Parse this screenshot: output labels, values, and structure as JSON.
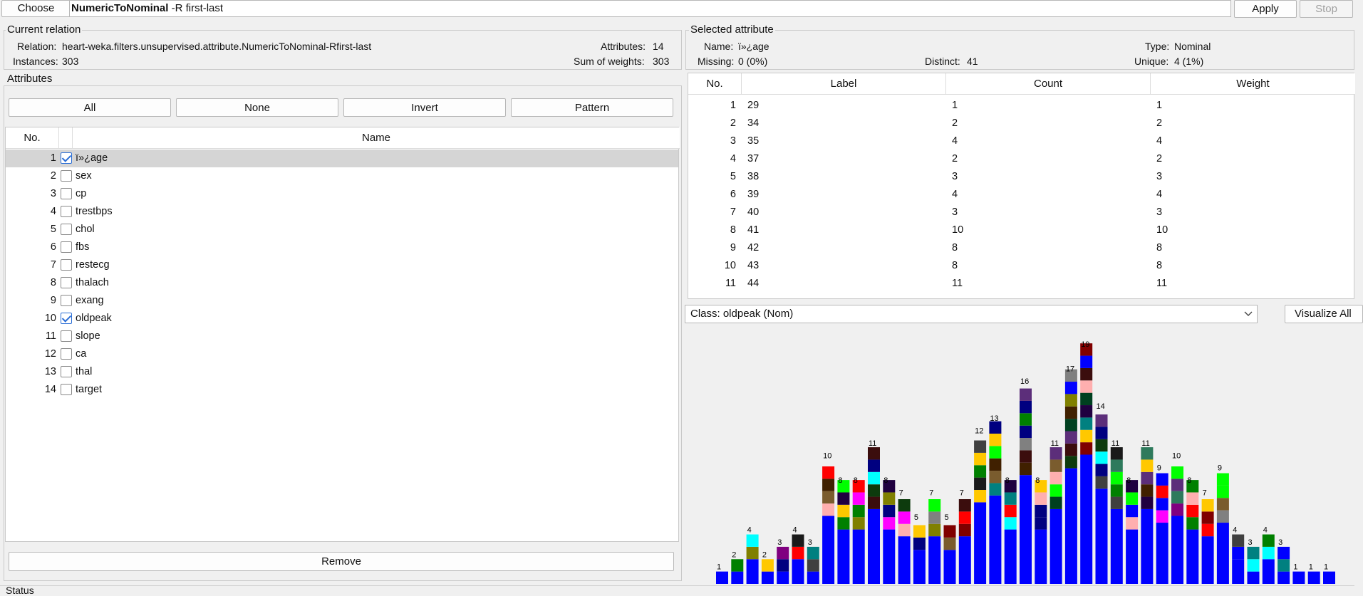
{
  "toolbar": {
    "choose_label": "Choose",
    "filter_name": "NumericToNominal",
    "filter_args": " -R first-last",
    "apply_label": "Apply",
    "stop_label": "Stop"
  },
  "current_relation": {
    "legend": "Current relation",
    "relation_label": "Relation:",
    "relation_value": "heart-weka.filters.unsupervised.attribute.NumericToNominal-Rfirst-last",
    "instances_label": "Instances:",
    "instances_value": "303",
    "attributes_label": "Attributes:",
    "attributes_value": "14",
    "sum_weights_label": "Sum of weights:",
    "sum_weights_value": "303"
  },
  "attributes": {
    "legend": "Attributes",
    "buttons": [
      "All",
      "None",
      "Invert",
      "Pattern"
    ],
    "col_no": "No.",
    "col_name": "Name",
    "rows": [
      {
        "no": "1",
        "name": "ï»¿age",
        "checked": true,
        "selected": true
      },
      {
        "no": "2",
        "name": "sex",
        "checked": false
      },
      {
        "no": "3",
        "name": "cp",
        "checked": false
      },
      {
        "no": "4",
        "name": "trestbps",
        "checked": false
      },
      {
        "no": "5",
        "name": "chol",
        "checked": false
      },
      {
        "no": "6",
        "name": "fbs",
        "checked": false
      },
      {
        "no": "7",
        "name": "restecg",
        "checked": false
      },
      {
        "no": "8",
        "name": "thalach",
        "checked": false
      },
      {
        "no": "9",
        "name": "exang",
        "checked": false
      },
      {
        "no": "10",
        "name": "oldpeak",
        "checked": true
      },
      {
        "no": "11",
        "name": "slope",
        "checked": false
      },
      {
        "no": "12",
        "name": "ca",
        "checked": false
      },
      {
        "no": "13",
        "name": "thal",
        "checked": false
      },
      {
        "no": "14",
        "name": "target",
        "checked": false
      }
    ],
    "remove_label": "Remove"
  },
  "selected_attribute": {
    "legend": "Selected attribute",
    "name_label": "Name:",
    "name_value": "ï»¿age",
    "type_label": "Type:",
    "type_value": "Nominal",
    "missing_label": "Missing:",
    "missing_value": "0 (0%)",
    "distinct_label": "Distinct:",
    "distinct_value": "41",
    "unique_label": "Unique:",
    "unique_value": "4 (1%)",
    "col_no": "No.",
    "col_label": "Label",
    "col_count": "Count",
    "col_weight": "Weight",
    "rows": [
      {
        "no": "1",
        "label": "29",
        "count": "1",
        "weight": "1"
      },
      {
        "no": "2",
        "label": "34",
        "count": "2",
        "weight": "2"
      },
      {
        "no": "3",
        "label": "35",
        "count": "4",
        "weight": "4"
      },
      {
        "no": "4",
        "label": "37",
        "count": "2",
        "weight": "2"
      },
      {
        "no": "5",
        "label": "38",
        "count": "3",
        "weight": "3"
      },
      {
        "no": "6",
        "label": "39",
        "count": "4",
        "weight": "4"
      },
      {
        "no": "7",
        "label": "40",
        "count": "3",
        "weight": "3"
      },
      {
        "no": "8",
        "label": "41",
        "count": "10",
        "weight": "10"
      },
      {
        "no": "9",
        "label": "42",
        "count": "8",
        "weight": "8"
      },
      {
        "no": "10",
        "label": "43",
        "count": "8",
        "weight": "8"
      },
      {
        "no": "11",
        "label": "44",
        "count": "11",
        "weight": "11"
      }
    ]
  },
  "class_select": {
    "value": "Class: oldpeak (Nom)",
    "visualize_label": "Visualize All"
  },
  "status": {
    "label": "Status"
  },
  "chart_data": {
    "type": "bar",
    "stacked": true,
    "values": [
      1,
      2,
      4,
      2,
      3,
      4,
      3,
      10,
      8,
      8,
      11,
      8,
      7,
      5,
      7,
      5,
      7,
      12,
      13,
      8,
      16,
      8,
      11,
      17,
      19,
      14,
      11,
      8,
      11,
      9,
      10,
      8,
      7,
      9,
      4,
      3,
      4,
      3,
      1,
      1,
      1
    ],
    "palette": [
      "#0000ff",
      "#ff0000",
      "#00ffff",
      "#00ff00",
      "#ff00ff",
      "#ffc800",
      "#ffafaf",
      "#808080",
      "#800000",
      "#008080",
      "#000080",
      "#008000",
      "#800080",
      "#808000",
      "#404040",
      "#402000",
      "#200040",
      "#004020",
      "#7a5c2e",
      "#2e7a5c",
      "#5c2e7a",
      "#1a1a1a",
      "#3b0d0d",
      "#0d3b0d"
    ]
  }
}
